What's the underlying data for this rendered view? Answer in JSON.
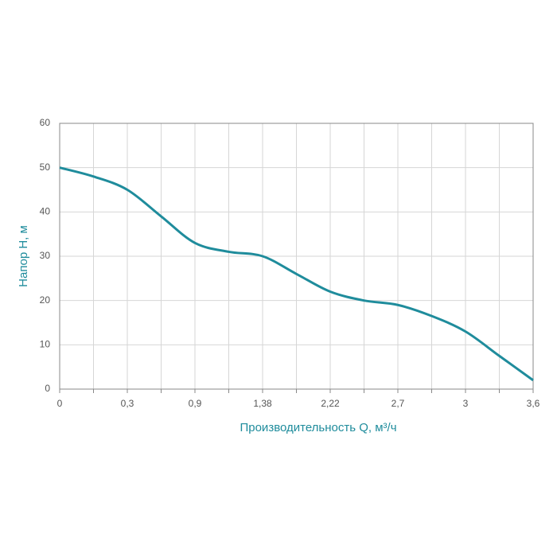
{
  "chart_data": {
    "type": "line",
    "x_label": "Производительность Q, м³/ч",
    "y_label": "Напор H, м",
    "categories": [
      "0",
      null,
      "0,3",
      null,
      "0,9",
      null,
      "1,38",
      null,
      "2,22",
      null,
      "2,7",
      null,
      "3",
      null,
      "3,6"
    ],
    "series": [
      {
        "name": "H",
        "color": "#1f8c9c",
        "values": [
          50,
          48,
          45,
          39,
          33,
          31,
          30,
          26,
          22,
          20,
          19,
          16.5,
          13,
          7.5,
          2
        ]
      }
    ],
    "ylim": [
      0,
      60
    ],
    "yticks": [
      0,
      10,
      20,
      30,
      40,
      50,
      60
    ],
    "grid": true
  }
}
